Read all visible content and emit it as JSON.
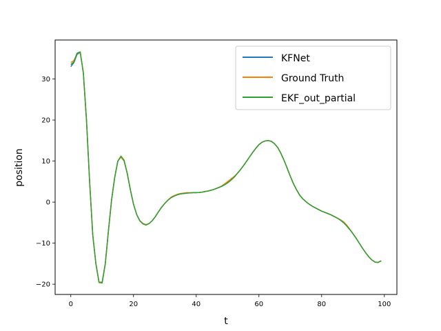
{
  "chart_data": {
    "type": "line",
    "xlabel": "t",
    "ylabel": "position",
    "xlim": [
      -5,
      104
    ],
    "ylim": [
      -22.5,
      39.5
    ],
    "xticks": [
      0,
      20,
      40,
      60,
      80,
      100
    ],
    "yticks": [
      -20,
      -10,
      0,
      10,
      20,
      30
    ],
    "grid": false,
    "legend_position": "top-right",
    "x": [
      0,
      1,
      2,
      3,
      4,
      5,
      6,
      7,
      8,
      9,
      10,
      11,
      12,
      13,
      14,
      15,
      16,
      17,
      18,
      19,
      20,
      21,
      22,
      23,
      24,
      25,
      26,
      27,
      28,
      29,
      30,
      31,
      32,
      33,
      34,
      35,
      36,
      37,
      38,
      39,
      40,
      41,
      42,
      43,
      44,
      45,
      46,
      47,
      48,
      49,
      50,
      51,
      52,
      53,
      54,
      55,
      56,
      57,
      58,
      59,
      60,
      61,
      62,
      63,
      64,
      65,
      66,
      67,
      68,
      69,
      70,
      71,
      72,
      73,
      74,
      75,
      76,
      77,
      78,
      79,
      80,
      81,
      82,
      83,
      84,
      85,
      86,
      87,
      88,
      89,
      90,
      91,
      92,
      93,
      94,
      95,
      96,
      97,
      98,
      99
    ],
    "series": [
      {
        "name": "KFNet",
        "color": "#1f77b4",
        "values": [
          33.0,
          34.0,
          36.0,
          36.5,
          31.5,
          20.0,
          5.0,
          -8.0,
          -15.0,
          -19.5,
          -19.5,
          -15.0,
          -7.0,
          0.5,
          6.0,
          10.0,
          11.0,
          10.0,
          7.0,
          3.0,
          -0.5,
          -3.0,
          -4.5,
          -5.2,
          -5.5,
          -5.2,
          -4.5,
          -3.5,
          -2.3,
          -1.2,
          -0.3,
          0.5,
          1.1,
          1.5,
          1.8,
          2.0,
          2.1,
          2.2,
          2.25,
          2.3,
          2.3,
          2.35,
          2.45,
          2.6,
          2.75,
          2.95,
          3.2,
          3.5,
          3.8,
          4.2,
          4.7,
          5.3,
          6.0,
          6.9,
          7.8,
          8.8,
          9.9,
          11.0,
          12.1,
          13.1,
          14.0,
          14.6,
          14.9,
          15.0,
          14.8,
          14.2,
          13.3,
          11.9,
          10.2,
          8.3,
          6.3,
          4.5,
          3.0,
          1.7,
          0.8,
          0.1,
          -0.5,
          -1.0,
          -1.4,
          -1.8,
          -2.2,
          -2.5,
          -2.8,
          -3.1,
          -3.5,
          -3.9,
          -4.4,
          -5.0,
          -5.8,
          -6.7,
          -7.7,
          -8.8,
          -10.0,
          -11.2,
          -12.3,
          -13.3,
          -14.1,
          -14.6,
          -14.7,
          -14.3
        ]
      },
      {
        "name": "Ground Truth",
        "color": "#ff7f0e",
        "values": [
          34.0,
          34.5,
          36.2,
          36.6,
          31.5,
          20.0,
          5.0,
          -8.0,
          -15.0,
          -19.5,
          -19.6,
          -15.0,
          -7.0,
          0.5,
          6.0,
          10.0,
          11.0,
          10.0,
          7.0,
          3.0,
          -0.5,
          -3.0,
          -4.5,
          -5.2,
          -5.5,
          -5.2,
          -4.5,
          -3.5,
          -2.3,
          -1.2,
          -0.3,
          0.5,
          1.2,
          1.6,
          1.9,
          2.1,
          2.2,
          2.3,
          2.3,
          2.3,
          2.3,
          2.35,
          2.45,
          2.6,
          2.75,
          2.95,
          3.2,
          3.5,
          3.9,
          4.4,
          5.0,
          5.6,
          6.2,
          6.9,
          7.8,
          8.8,
          9.9,
          11.0,
          12.1,
          13.1,
          14.0,
          14.6,
          14.9,
          15.0,
          14.8,
          14.2,
          13.3,
          11.9,
          10.2,
          8.3,
          6.3,
          4.5,
          3.0,
          1.7,
          0.8,
          0.1,
          -0.5,
          -1.0,
          -1.4,
          -1.8,
          -2.2,
          -2.5,
          -2.8,
          -3.1,
          -3.5,
          -3.9,
          -4.3,
          -4.8,
          -5.6,
          -6.6,
          -7.7,
          -8.8,
          -10.0,
          -11.2,
          -12.3,
          -13.3,
          -14.1,
          -14.6,
          -14.7,
          -14.3
        ]
      },
      {
        "name": "EKF_out_partial",
        "color": "#2ca02c",
        "values": [
          33.5,
          34.2,
          36.3,
          36.6,
          31.5,
          20.0,
          5.0,
          -8.0,
          -15.0,
          -19.6,
          -19.7,
          -15.0,
          -7.0,
          0.5,
          6.0,
          10.0,
          11.2,
          10.2,
          7.0,
          3.0,
          -0.5,
          -3.0,
          -4.6,
          -5.3,
          -5.6,
          -5.2,
          -4.5,
          -3.5,
          -2.3,
          -1.2,
          -0.3,
          0.5,
          1.1,
          1.5,
          1.8,
          2.0,
          2.1,
          2.2,
          2.25,
          2.3,
          2.3,
          2.35,
          2.45,
          2.6,
          2.75,
          2.95,
          3.2,
          3.5,
          3.8,
          4.2,
          4.7,
          5.3,
          6.0,
          6.9,
          7.8,
          8.8,
          9.9,
          11.0,
          12.1,
          13.1,
          14.0,
          14.6,
          14.9,
          15.0,
          14.8,
          14.2,
          13.3,
          11.9,
          10.2,
          8.3,
          6.3,
          4.5,
          3.0,
          1.7,
          0.8,
          0.1,
          -0.5,
          -1.0,
          -1.4,
          -1.8,
          -2.2,
          -2.5,
          -2.8,
          -3.1,
          -3.5,
          -3.9,
          -4.4,
          -5.0,
          -5.8,
          -6.7,
          -7.7,
          -8.8,
          -10.0,
          -11.2,
          -12.3,
          -13.3,
          -14.1,
          -14.6,
          -14.7,
          -14.3
        ]
      }
    ]
  }
}
